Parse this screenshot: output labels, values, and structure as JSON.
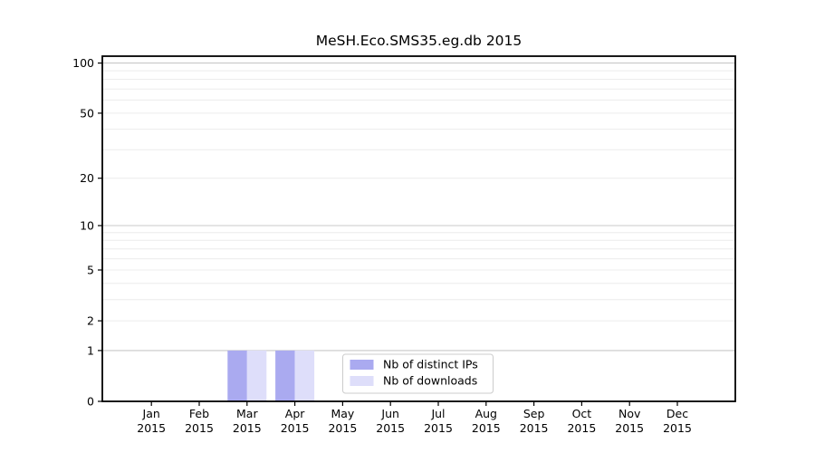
{
  "chart_data": {
    "type": "bar",
    "title": "MeSH.Eco.SMS35.eg.db 2015",
    "categories": [
      "Jan",
      "Feb",
      "Mar",
      "Apr",
      "May",
      "Jun",
      "Jul",
      "Aug",
      "Sep",
      "Oct",
      "Nov",
      "Dec"
    ],
    "category_year": "2015",
    "series": [
      {
        "name": "Nb of distinct IPs",
        "color": "#aaaaf0",
        "values": [
          0,
          0,
          1,
          1,
          0,
          0,
          0,
          0,
          0,
          0,
          0,
          0
        ]
      },
      {
        "name": "Nb of downloads",
        "color": "#dedefa",
        "values": [
          0,
          0,
          1,
          1,
          0,
          0,
          0,
          0,
          0,
          0,
          0,
          0
        ]
      }
    ],
    "y_scale": "log1p",
    "y_ticks": [
      0,
      1,
      2,
      5,
      10,
      20,
      50,
      100
    ],
    "ylim": [
      0,
      110
    ],
    "grid_minor_values": [
      2,
      3,
      4,
      5,
      6,
      7,
      8,
      9,
      20,
      30,
      40,
      50,
      60,
      70,
      80,
      90
    ],
    "grid_major_values": [
      1,
      10,
      100
    ],
    "legend": {
      "position": "inside-bottom-center"
    },
    "colors": {
      "axis": "#000000",
      "text": "#000000",
      "grid_major": "#c8c8c8",
      "grid_minor": "#ececec",
      "background": "#ffffff",
      "legend_border": "#cccccc",
      "legend_background": "#ffffff"
    }
  }
}
